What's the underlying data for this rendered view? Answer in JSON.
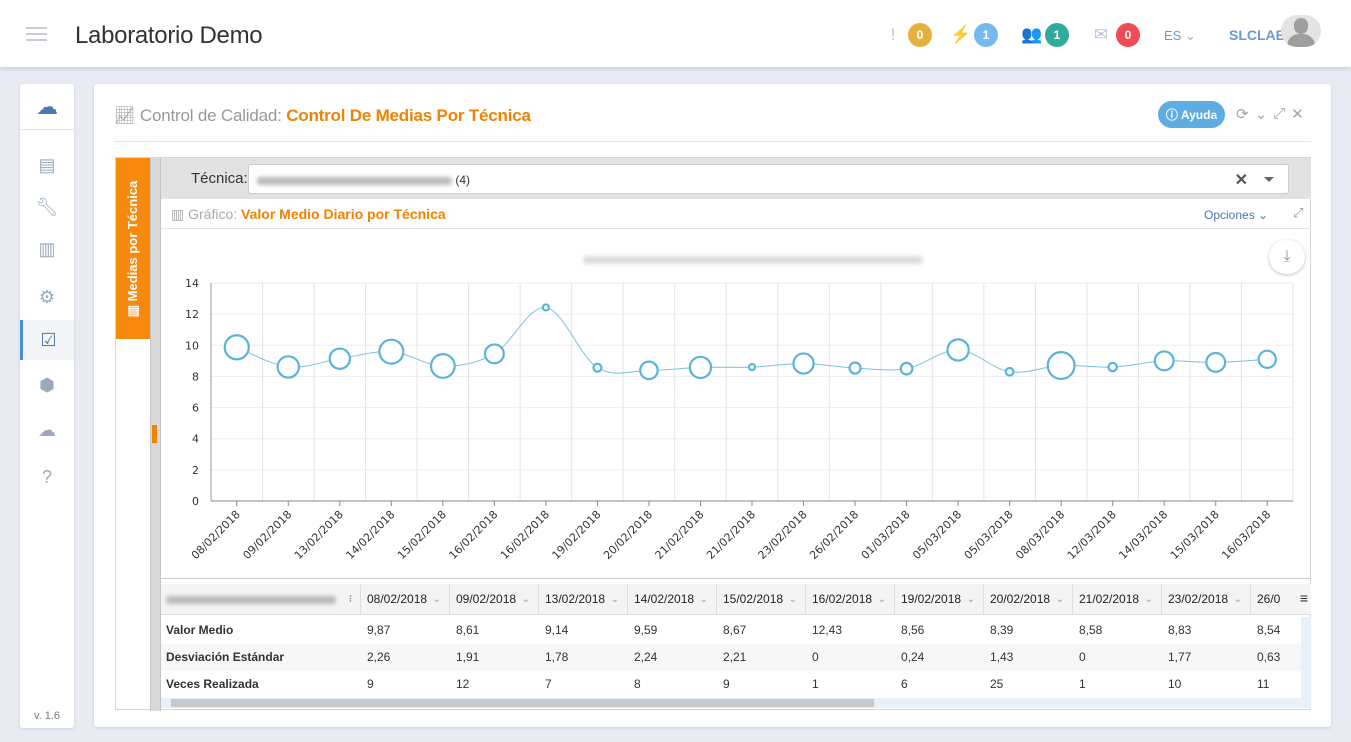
{
  "header": {
    "title": "Laboratorio Demo",
    "notifications": [
      {
        "icon": "exclamation-icon",
        "count": "0",
        "color": "#e3b23c"
      },
      {
        "icon": "plug-icon",
        "count": "1",
        "color": "#75b9ef"
      },
      {
        "icon": "users-icon",
        "count": "1",
        "color": "#2eab9c"
      },
      {
        "icon": "envelope-open-icon",
        "count": "0",
        "color": "#ef4c56"
      }
    ],
    "language": "ES",
    "user": "SLCLAB"
  },
  "sidebar": {
    "items": [
      "dashboard-icon",
      "wrench-icon",
      "bar-chart-icon",
      "gear-icon",
      "calendar-check-icon",
      "cube-icon",
      "cloud-icon",
      "help-icon"
    ],
    "active": 4,
    "version": "v. 1.6"
  },
  "page": {
    "section": "Control de Calidad:",
    "title": "Control De Medias Por Técnica",
    "help": "Ayuda"
  },
  "tab": {
    "label": "Medias por Técnica"
  },
  "filter": {
    "label": "Técnica:",
    "count": "(4)"
  },
  "graph": {
    "label": "Gráfico:",
    "title": "Valor Medio Diario por Técnica",
    "options": "Opciones"
  },
  "chart_data": {
    "type": "scatter",
    "subtype": "bubble-spline",
    "ylim": [
      0,
      14
    ],
    "yticks": [
      0,
      2,
      4,
      6,
      8,
      10,
      12,
      14
    ],
    "grid": true,
    "color": "#5ab4d6",
    "categories": [
      "08/02/2018",
      "09/02/2018",
      "13/02/2018",
      "14/02/2018",
      "15/02/2018",
      "16/02/2018",
      "16/02/2018",
      "19/02/2018",
      "20/02/2018",
      "21/02/2018",
      "21/02/2018",
      "23/02/2018",
      "26/02/2018",
      "01/03/2018",
      "05/03/2018",
      "05/03/2018",
      "08/03/2018",
      "12/03/2018",
      "14/03/2018",
      "15/03/2018",
      "16/03/2018"
    ],
    "values": [
      9.87,
      8.61,
      9.14,
      9.59,
      8.67,
      9.45,
      12.43,
      8.56,
      8.39,
      8.58,
      8.6,
      8.83,
      8.54,
      8.5,
      9.7,
      8.3,
      8.7,
      8.6,
      9.0,
      8.9,
      9.1
    ],
    "bubble_size": [
      2.26,
      1.91,
      1.78,
      2.24,
      2.21,
      1.6,
      0,
      0.24,
      1.43,
      1.9,
      0,
      1.77,
      0.63,
      0.7,
      1.9,
      0.2,
      2.6,
      0.3,
      1.6,
      1.6,
      1.4
    ]
  },
  "table": {
    "columns": [
      "08/02/2018",
      "09/02/2018",
      "13/02/2018",
      "14/02/2018",
      "15/02/2018",
      "16/02/2018",
      "19/02/2018",
      "20/02/2018",
      "21/02/2018",
      "23/02/2018",
      "26/0"
    ],
    "rows": [
      {
        "label": "Valor Medio",
        "values": [
          "9,87",
          "8,61",
          "9,14",
          "9,59",
          "8,67",
          "12,43",
          "8,56",
          "8,39",
          "8,58",
          "8,83",
          "8,54"
        ]
      },
      {
        "label": "Desviación Estándar",
        "values": [
          "2,26",
          "1,91",
          "1,78",
          "2,24",
          "2,21",
          "0",
          "0,24",
          "1,43",
          "0",
          "1,77",
          "0,63"
        ]
      },
      {
        "label": "Veces Realizada",
        "values": [
          "9",
          "12",
          "7",
          "8",
          "9",
          "1",
          "6",
          "25",
          "1",
          "10",
          "11"
        ]
      }
    ]
  }
}
